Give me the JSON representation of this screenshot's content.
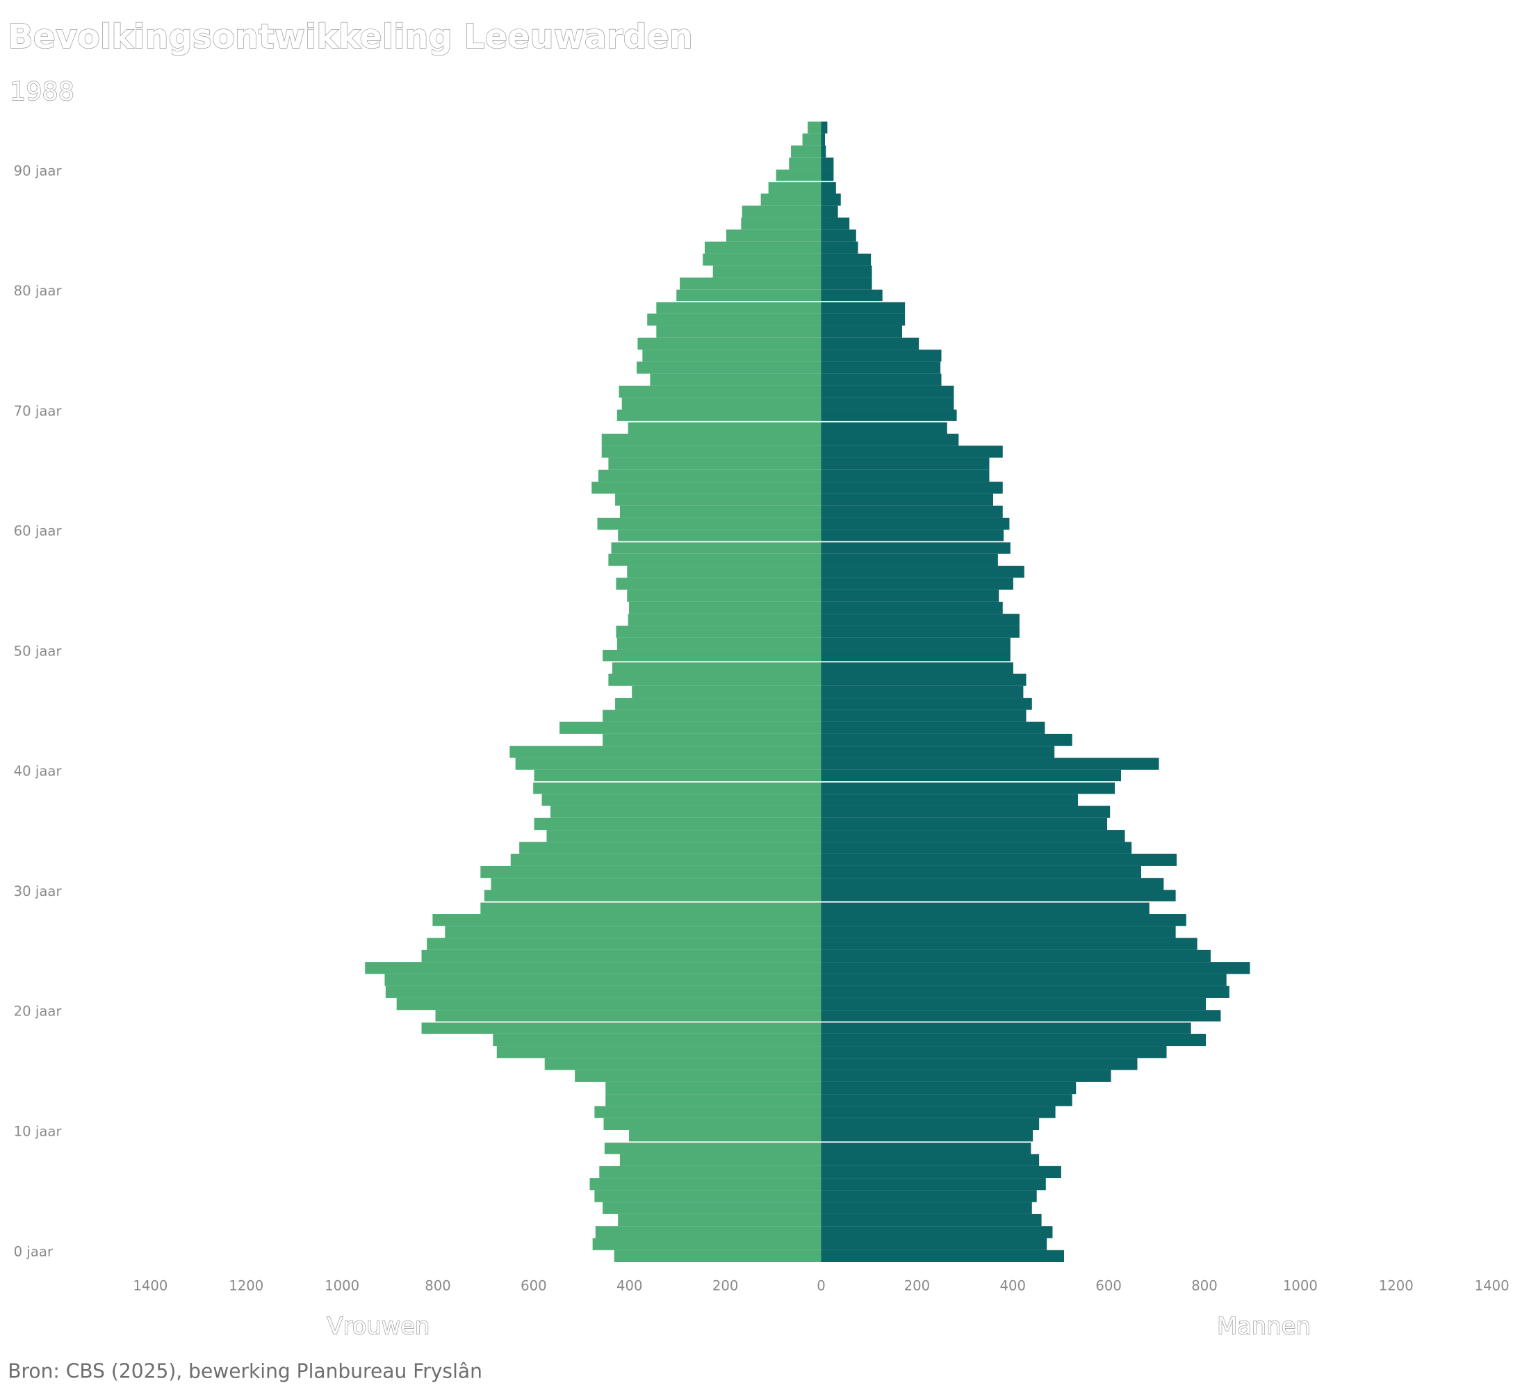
{
  "chart_data": {
    "type": "population-pyramid",
    "title": "Bevolkingsontwikkeling Leeuwarden",
    "subtitle": "1988",
    "source": "Bron: CBS (2025), bewerking Planbureau Fryslân",
    "categories": [
      "0 jaar",
      null,
      null,
      null,
      null,
      null,
      null,
      null,
      null,
      null,
      "10 jaar",
      null,
      null,
      null,
      null,
      null,
      null,
      null,
      null,
      null,
      "20 jaar",
      null,
      null,
      null,
      null,
      null,
      null,
      null,
      null,
      null,
      "30 jaar",
      null,
      null,
      null,
      null,
      null,
      null,
      null,
      null,
      null,
      "40 jaar",
      null,
      null,
      null,
      null,
      null,
      null,
      null,
      null,
      null,
      "50 jaar",
      null,
      null,
      null,
      null,
      null,
      null,
      null,
      null,
      null,
      "60 jaar",
      null,
      null,
      null,
      null,
      null,
      null,
      null,
      null,
      null,
      "70 jaar",
      null,
      null,
      null,
      null,
      null,
      null,
      null,
      null,
      null,
      "80 jaar",
      null,
      null,
      null,
      null,
      null,
      null,
      null,
      null,
      null,
      "90 jaar",
      null,
      null,
      null,
      null
    ],
    "series": [
      {
        "name": "Vrouwen",
        "side": "left",
        "color": "#4fae76",
        "values": [
          432,
          477,
          471,
          424,
          456,
          473,
          483,
          463,
          420,
          452,
          401,
          454,
          473,
          450,
          450,
          514,
          577,
          677,
          685,
          834,
          805,
          886,
          909,
          911,
          952,
          834,
          823,
          785,
          811,
          711,
          703,
          689,
          711,
          648,
          630,
          573,
          599,
          565,
          583,
          601,
          599,
          638,
          650,
          456,
          546,
          456,
          430,
          395,
          444,
          436,
          456,
          426,
          428,
          403,
          401,
          405,
          428,
          405,
          444,
          438,
          424,
          467,
          420,
          430,
          479,
          465,
          444,
          458,
          458,
          403,
          426,
          416,
          422,
          357,
          385,
          373,
          383,
          344,
          363,
          344,
          302,
          295,
          226,
          247,
          243,
          198,
          167,
          165,
          126,
          110,
          94,
          67,
          63,
          39,
          28
        ]
      },
      {
        "name": "Mannen",
        "side": "right",
        "color": "#0b6466",
        "values": [
          507,
          471,
          483,
          460,
          440,
          450,
          469,
          501,
          455,
          438,
          442,
          455,
          489,
          524,
          532,
          605,
          660,
          721,
          803,
          772,
          834,
          803,
          852,
          846,
          895,
          813,
          785,
          740,
          762,
          685,
          740,
          715,
          668,
          742,
          648,
          634,
          597,
          603,
          536,
          613,
          626,
          705,
          487,
          524,
          467,
          428,
          440,
          422,
          428,
          401,
          395,
          395,
          414,
          414,
          379,
          371,
          401,
          424,
          369,
          395,
          381,
          393,
          379,
          359,
          379,
          351,
          351,
          379,
          287,
          263,
          283,
          277,
          277,
          251,
          249,
          251,
          204,
          169,
          175,
          175,
          128,
          106,
          106,
          104,
          77,
          73,
          59,
          35,
          41,
          31,
          26,
          26,
          10,
          8,
          13
        ]
      }
    ],
    "xlim": [
      0,
      1400
    ],
    "xticks": [
      0,
      200,
      400,
      600,
      800,
      1000,
      1200,
      1400
    ]
  }
}
